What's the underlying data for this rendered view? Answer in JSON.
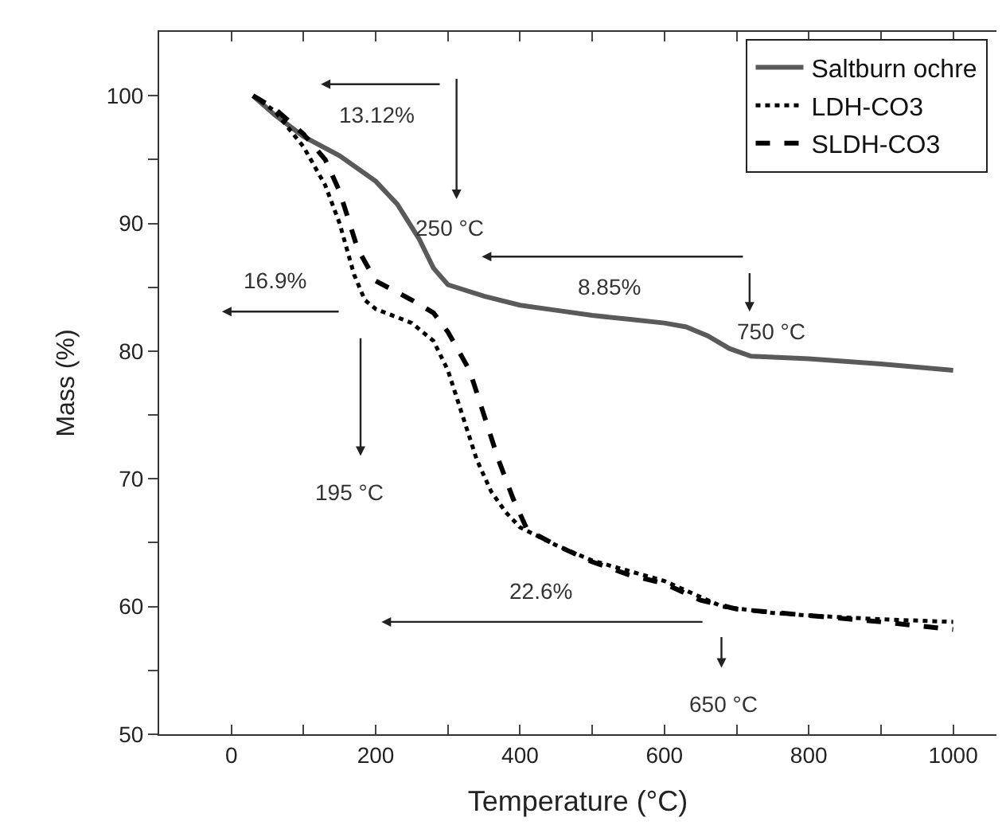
{
  "chart_data": {
    "type": "line",
    "xlabel": "Temperature (°C)",
    "ylabel": "Mass (%)",
    "xlim": [
      -100,
      1060
    ],
    "ylim": [
      50,
      105
    ],
    "xticks": [
      {
        "value": -100,
        "label": null
      },
      0,
      {
        "value": 100,
        "label": null
      },
      200,
      {
        "value": 300,
        "label": null
      },
      400,
      {
        "value": 500,
        "label": null
      },
      600,
      {
        "value": 700,
        "label": null
      },
      800,
      {
        "value": 900,
        "label": null
      },
      1000
    ],
    "yticks": [
      50,
      {
        "value": 55,
        "label": null
      },
      60,
      {
        "value": 65,
        "label": null
      },
      70,
      {
        "value": 75,
        "label": null
      },
      80,
      {
        "value": 85,
        "label": null
      },
      90,
      {
        "value": 95,
        "label": null
      },
      100
    ],
    "legend": "top right",
    "marker": "none",
    "series": [
      {
        "name": "Saltburn ochre",
        "color": "#5a5a5a",
        "line_style": "solid",
        "x": [
          30,
          60,
          100,
          150,
          200,
          230,
          260,
          280,
          300,
          350,
          400,
          450,
          500,
          550,
          600,
          630,
          660,
          690,
          720,
          800,
          900,
          1000
        ],
        "values": [
          100,
          98.5,
          96.8,
          95.3,
          93.3,
          91.5,
          88.8,
          86.5,
          85.2,
          84.3,
          83.6,
          83.2,
          82.8,
          82.5,
          82.2,
          81.9,
          81.2,
          80.2,
          79.6,
          79.4,
          79.0,
          78.5
        ]
      },
      {
        "name": "LDH-CO3",
        "color": "#000000",
        "line_style": "dotted",
        "x": [
          30,
          60,
          100,
          130,
          150,
          170,
          185,
          200,
          250,
          280,
          300,
          320,
          340,
          360,
          380,
          400,
          450,
          500,
          550,
          600,
          640,
          680,
          750,
          800,
          900,
          1000
        ],
        "values": [
          100,
          98.8,
          96,
          93,
          90,
          86,
          84,
          83.3,
          82.2,
          80.8,
          78.5,
          75,
          71.5,
          69,
          67.4,
          66.2,
          64.8,
          63.6,
          62.8,
          62,
          61,
          60,
          59.5,
          59.3,
          59,
          58.8
        ]
      },
      {
        "name": "SLDH-CO3",
        "color": "#000000",
        "line_style": "dashed",
        "x": [
          30,
          60,
          100,
          130,
          150,
          175,
          200,
          250,
          280,
          300,
          330,
          350,
          370,
          390,
          410,
          450,
          500,
          550,
          600,
          650,
          700,
          800,
          900,
          1000
        ],
        "values": [
          100,
          99,
          97,
          95,
          92.5,
          88,
          85.5,
          84,
          83,
          81.5,
          78.5,
          75,
          71.5,
          68.5,
          66,
          64.8,
          63.5,
          62.5,
          61.8,
          60.5,
          59.8,
          59.3,
          58.8,
          58.2
        ]
      }
    ],
    "annotations": [
      "13.12%",
      "250 °C",
      "8.85%",
      "750 °C",
      "16.9%",
      "195 °C",
      "22.6%",
      "650 °C"
    ]
  }
}
